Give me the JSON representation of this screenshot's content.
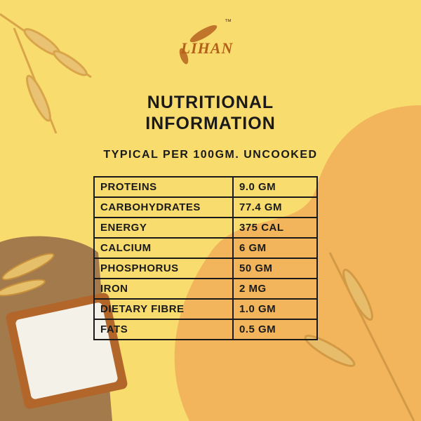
{
  "logo": {
    "text": "LIHAN",
    "mark": "™"
  },
  "title_lines": [
    "NUTRITIONAL",
    "INFORMATION"
  ],
  "subtitle": "TYPICAL PER 100GM. UNCOOKED",
  "table": {
    "rows": [
      [
        "PROTEINS",
        "9.0 GM"
      ],
      [
        "CARBOHYDRATES",
        "77.4 GM"
      ],
      [
        "ENERGY",
        "375 CAL"
      ],
      [
        "CALCIUM",
        "6 GM"
      ],
      [
        "PHOSPHORUS",
        "50 GM"
      ],
      [
        "IRON",
        "2 MG"
      ],
      [
        "DIETARY FIBRE",
        "1.0 GM"
      ],
      [
        "FATS",
        "0.5 GM"
      ]
    ]
  }
}
